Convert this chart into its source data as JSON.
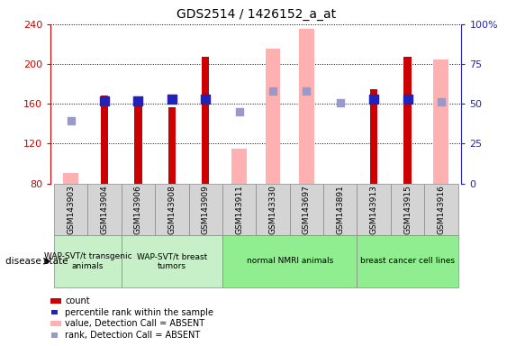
{
  "title": "GDS2514 / 1426152_a_at",
  "samples": [
    "GSM143903",
    "GSM143904",
    "GSM143906",
    "GSM143908",
    "GSM143909",
    "GSM143911",
    "GSM143330",
    "GSM143697",
    "GSM143891",
    "GSM143913",
    "GSM143915",
    "GSM143916"
  ],
  "count_values": [
    null,
    168,
    165,
    157,
    207,
    null,
    null,
    null,
    null,
    175,
    207,
    null
  ],
  "count_absent_values": [
    90,
    null,
    null,
    null,
    null,
    115,
    215,
    235,
    null,
    null,
    null,
    205
  ],
  "rank_values": [
    null,
    163,
    163,
    165,
    165,
    null,
    null,
    null,
    null,
    165,
    165,
    null
  ],
  "rank_absent_values": [
    143,
    null,
    null,
    null,
    null,
    152,
    173,
    173,
    161,
    null,
    null,
    162
  ],
  "ylim_left": [
    80,
    240
  ],
  "ylim_right": [
    0,
    100
  ],
  "yticks_left": [
    80,
    120,
    160,
    200,
    240
  ],
  "yticks_right": [
    0,
    25,
    50,
    75,
    100
  ],
  "ytick_labels_right": [
    "0",
    "25",
    "50",
    "75",
    "100%"
  ],
  "group_defs": [
    {
      "indices": [
        0,
        1
      ],
      "label": "WAP-SVT/t transgenic\nanimals",
      "color": "#c8f0c8"
    },
    {
      "indices": [
        2,
        3,
        4
      ],
      "label": "WAP-SVT/t breast\ntumors",
      "color": "#c8f0c8"
    },
    {
      "indices": [
        5,
        6,
        7,
        8
      ],
      "label": "normal NMRI animals",
      "color": "#90ee90"
    },
    {
      "indices": [
        9,
        10,
        11
      ],
      "label": "breast cancer cell lines",
      "color": "#90ee90"
    }
  ],
  "narrow_bar_width": 0.22,
  "wide_bar_width": 0.45,
  "rank_marker_size": 45,
  "absent_rank_marker_size": 30,
  "count_color": "#cc0000",
  "absent_value_color": "#ffb0b0",
  "rank_color": "#2222bb",
  "absent_rank_color": "#9999cc",
  "background_color": "#ffffff",
  "left_axis_color": "#cc0000",
  "right_axis_color": "#2222bb",
  "tick_bg_color": "#d4d4d4",
  "tick_sep_color": "#888888"
}
